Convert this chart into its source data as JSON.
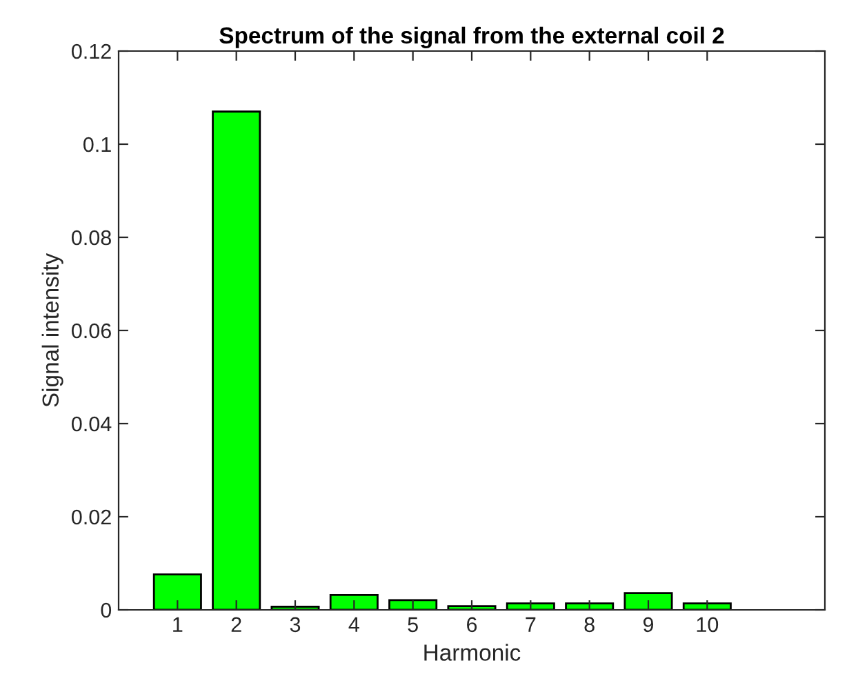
{
  "chart_data": {
    "type": "bar",
    "title": "Spectrum of the signal from the external coil 2",
    "xlabel": "Harmonic",
    "ylabel": "Signal intensity",
    "x": [
      1,
      2,
      3,
      4,
      5,
      6,
      7,
      8,
      9,
      10
    ],
    "values": [
      0.0076,
      0.107,
      0.0007,
      0.0032,
      0.0021,
      0.0008,
      0.0014,
      0.0014,
      0.0036,
      0.0014
    ],
    "color": "#00ff00",
    "xlim": [
      0,
      12
    ],
    "xticks": [
      1,
      2,
      3,
      4,
      5,
      6,
      7,
      8,
      9,
      10
    ],
    "ylim": [
      0,
      0.12
    ],
    "yticks": [
      0,
      0.02,
      0.04,
      0.06,
      0.08,
      0.1,
      0.12
    ],
    "grid": false,
    "legend": false
  }
}
